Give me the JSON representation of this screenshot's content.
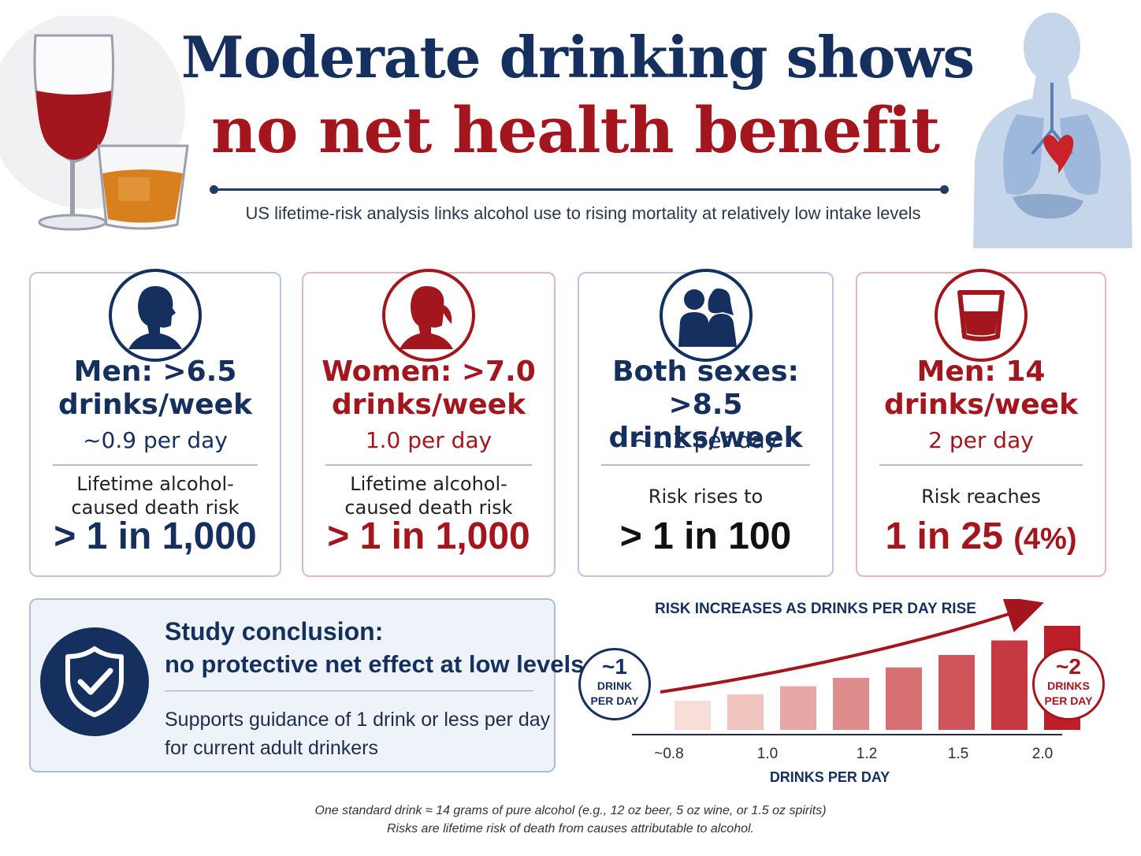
{
  "header": {
    "title_line1": "Moderate drinking shows",
    "title_line2": "no net health benefit",
    "subtitle": "US lifetime-risk analysis links alcohol use to rising mortality at relatively low intake levels"
  },
  "colors": {
    "navy": "#15305e",
    "red": "#a3161d",
    "light_blue_bg": "#eef3fa"
  },
  "cards": [
    {
      "icon": "man-silhouette-icon",
      "title_l1": "Men: >6.5",
      "title_l2": "drinks/week",
      "per_day": "~0.9 per day",
      "desc_l1": "Lifetime alcohol-",
      "desc_l2": "caused death risk",
      "risk": "> 1 in 1,000"
    },
    {
      "icon": "woman-silhouette-icon",
      "title_l1": "Women: >7.0",
      "title_l2": "drinks/week",
      "per_day": "1.0 per day",
      "desc_l1": "Lifetime alcohol-",
      "desc_l2": "caused death risk",
      "risk": "> 1 in 1,000"
    },
    {
      "icon": "couple-silhouette-icon",
      "title_l1": "Both sexes:",
      "title_l2": ">8.5 drinks/week",
      "per_day": "~1.2 per day",
      "desc_l1": "Risk rises to",
      "risk": "> 1 in 100"
    },
    {
      "icon": "drink-glass-icon",
      "title_l1": "Men: 14",
      "title_l2": "drinks/week",
      "per_day": "2 per day",
      "desc_l1": "Risk reaches",
      "risk": "1 in 25",
      "risk_pct": "(4%)"
    }
  ],
  "conclusion": {
    "icon": "shield-check-icon",
    "title": "Study conclusion:",
    "subtitle": "no protective net effect at low levels",
    "text_l1": "Supports guidance of 1 drink or less per day",
    "text_l2": "for current adult drinkers"
  },
  "chart_data": {
    "type": "bar",
    "title": "RISK INCREASES AS DRINKS PER DAY RISE",
    "xlabel": "DRINKS PER DAY",
    "ylabel": "",
    "tick_labels": [
      "~0.8",
      "1.0",
      "1.2",
      "1.5",
      "2.0"
    ],
    "values": [
      0.28,
      0.34,
      0.42,
      0.5,
      0.6,
      0.72,
      0.86,
      1.0
    ],
    "left_marker": {
      "num": "~1",
      "unit_l1": "DRINK",
      "unit_l2": "PER DAY"
    },
    "right_marker": {
      "num": "~2",
      "unit_l1": "DRINKS",
      "unit_l2": "PER DAY"
    }
  },
  "footnotes": {
    "line1": "One standard drink ≈ 14 grams of pure alcohol (e.g., 12 oz beer, 5 oz wine, or 1.5 oz spirits)",
    "line2": "Risks are lifetime risk of death from causes attributable to alcohol."
  }
}
